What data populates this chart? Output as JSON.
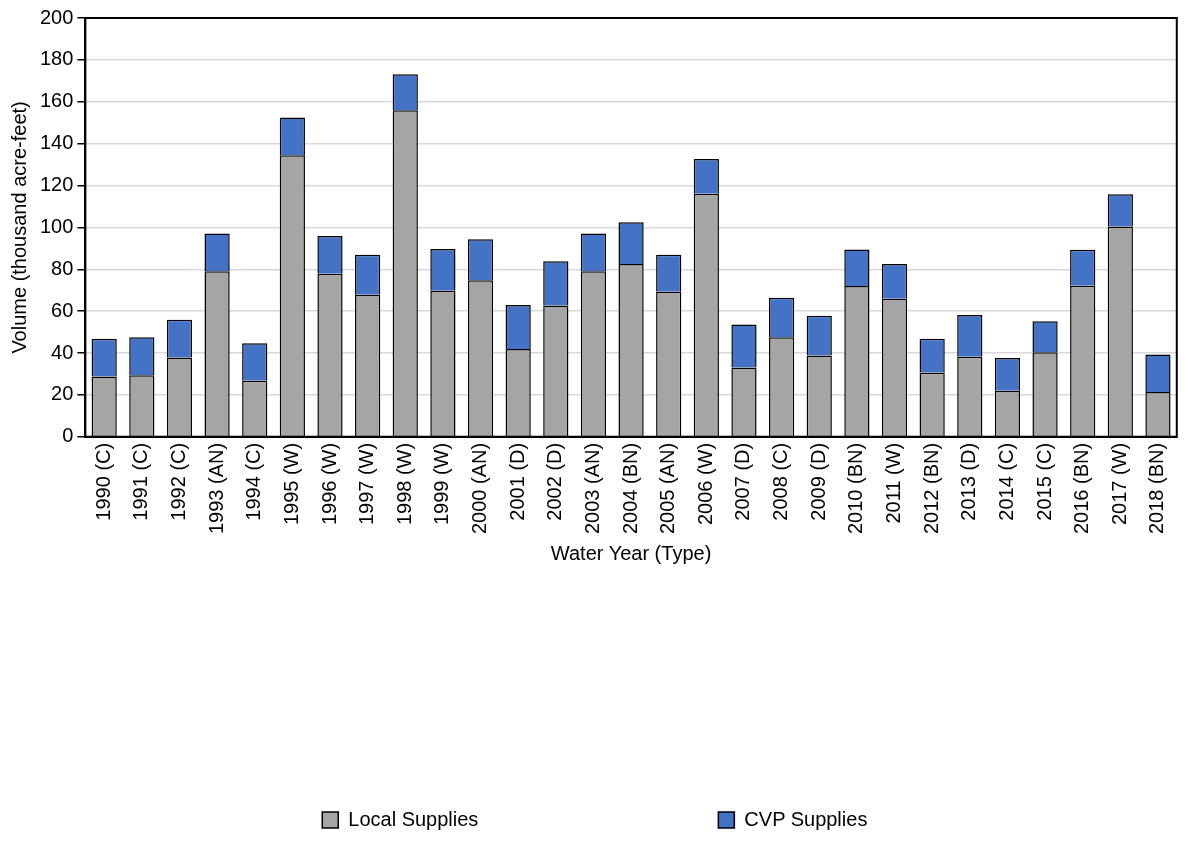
{
  "chart_data": {
    "type": "bar",
    "stacked": true,
    "xlabel": "Water Year (Type)",
    "ylabel": "Volume (thousand acre-feet)",
    "categories": [
      "1990 (C)",
      "1991 (C)",
      "1992 (C)",
      "1993 (AN)",
      "1994 (C)",
      "1995 (W)",
      "1996 (W)",
      "1997 (W)",
      "1998 (W)",
      "1999 (W)",
      "2000 (AN)",
      "2001 (D)",
      "2002 (D)",
      "2003 (AN)",
      "2004 (BN)",
      "2005 (AN)",
      "2006 (W)",
      "2007 (D)",
      "2008 (C)",
      "2009 (D)",
      "2010 (BN)",
      "2011 (W)",
      "2012 (BN)",
      "2013 (D)",
      "2014 (C)",
      "2015 (C)",
      "2016 (BN)",
      "2017 (W)",
      "2018 (BN)"
    ],
    "series": [
      {
        "name": "Local Supplies",
        "color": "#a5a5a5",
        "values": [
          28.8,
          29.4,
          37.9,
          79.1,
          26.8,
          134.5,
          77.9,
          67.8,
          155.9,
          69.8,
          74.8,
          42.0,
          62.7,
          79.1,
          82.5,
          69.3,
          116.1,
          33.1,
          47.5,
          38.8,
          72.0,
          66.0,
          30.6,
          38.2,
          22.0,
          40.4,
          72.2,
          100.4,
          21.4
        ]
      },
      {
        "name": "CVP Supplies",
        "color": "#4472c4",
        "values": [
          18.0,
          18.1,
          18.0,
          18.0,
          17.9,
          18.0,
          18.0,
          19.1,
          17.2,
          19.9,
          19.6,
          20.9,
          21.1,
          18.0,
          20.0,
          17.6,
          16.6,
          20.6,
          18.9,
          19.0,
          17.5,
          16.5,
          16.3,
          20.0,
          15.6,
          14.8,
          17.1,
          15.5,
          17.9
        ]
      }
    ],
    "ylim": [
      0,
      200
    ],
    "yticks": [
      0,
      20,
      40,
      60,
      80,
      100,
      120,
      140,
      160,
      180,
      200
    ],
    "grid": "y",
    "legend": "bottom"
  }
}
